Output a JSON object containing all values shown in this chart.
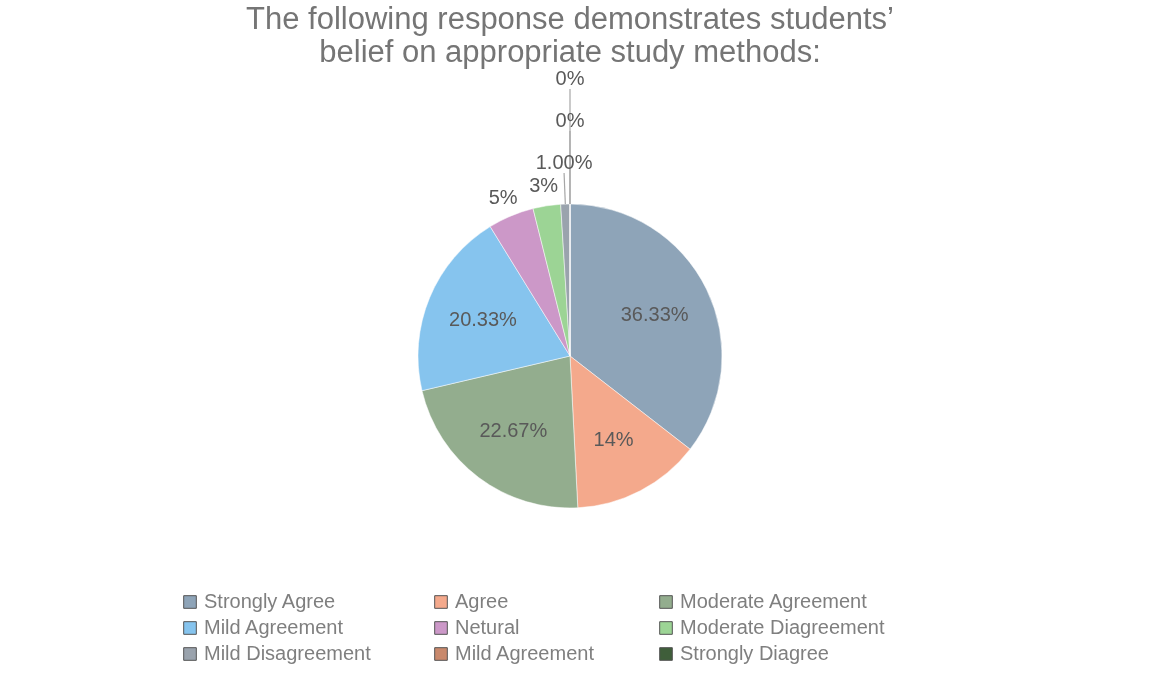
{
  "chart_data": {
    "type": "pie",
    "title": "The following response demonstrates students’ belief on appropriate study methods:",
    "categories": [
      "Strongly Agree",
      "Agree",
      "Moderate Agreement",
      "Mild Agreement",
      "Netural",
      "Moderate Diagreement",
      "Mild Disagreement",
      "Mild Agreement",
      "Strongly Diagree"
    ],
    "values": [
      36.33,
      14,
      22.67,
      20.33,
      5,
      3,
      1.0,
      0,
      0
    ],
    "value_labels": [
      "36.33%",
      "14%",
      "22.67%",
      "20.33%",
      "5%",
      "3%",
      "1.00%",
      "0%",
      "0%"
    ],
    "colors": [
      "#8ea4b8",
      "#f4a98c",
      "#93ad8e",
      "#86c4ee",
      "#cc98c8",
      "#9cd495",
      "#9aa3ad",
      "#c9896c",
      "#3f5e3a"
    ],
    "legend": "bottom"
  }
}
